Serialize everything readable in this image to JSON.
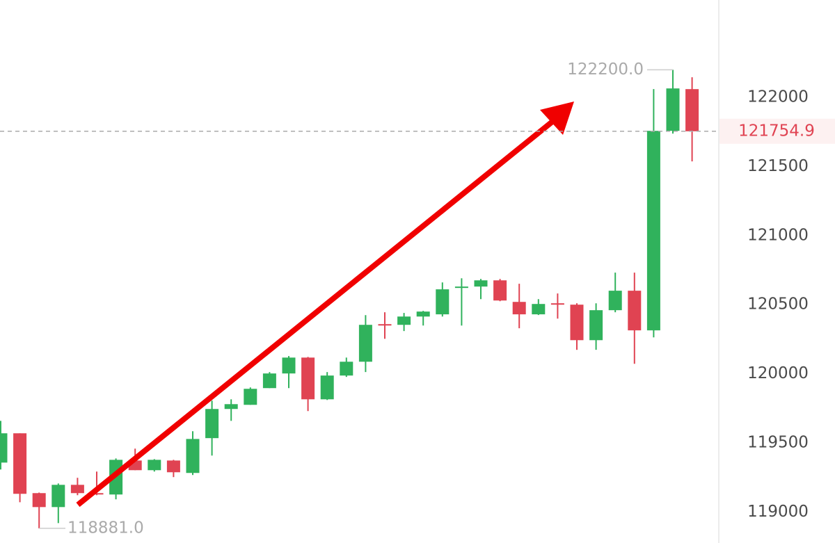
{
  "chart_data": {
    "type": "candlestick",
    "ylim": [
      118775,
      122705
    ],
    "yticks": [
      119000,
      119500,
      120000,
      120500,
      121000,
      121500,
      122000
    ],
    "up_color": "#30b25c",
    "down_color": "#e04352",
    "current_price": 121754.9,
    "high_marker": {
      "value": 122200,
      "label": "122200.0"
    },
    "low_marker": {
      "value": 118881,
      "label": "118881.0"
    },
    "open": [
      119357,
      119569,
      119136,
      119035,
      119196,
      119136,
      119126,
      119372,
      119302,
      119372,
      119282,
      119534,
      119745,
      119775,
      119896,
      120002,
      120117,
      119815,
      119987,
      120087,
      120359,
      120354,
      120414,
      120430,
      120621,
      120631,
      120676,
      120520,
      120430,
      120510,
      120500,
      120243,
      120460,
      120601,
      120314,
      121758,
      122060
    ],
    "high": [
      119659,
      119569,
      119140,
      119206,
      119247,
      119292,
      119387,
      119458,
      119382,
      119377,
      119584,
      119805,
      119815,
      119901,
      120012,
      120128,
      120122,
      120012,
      120117,
      120424,
      120445,
      120440,
      120455,
      120661,
      120691,
      120686,
      120686,
      120651,
      120540,
      120581,
      120510,
      120510,
      120732,
      120732,
      122060,
      122200,
      122146
    ],
    "low": [
      119307,
      119070,
      118881,
      118919,
      119121,
      119121,
      119091,
      119302,
      119292,
      119252,
      119267,
      119408,
      119659,
      119775,
      119896,
      119896,
      119730,
      119810,
      119977,
      120012,
      120253,
      120309,
      120349,
      120414,
      120349,
      120540,
      120525,
      120329,
      120425,
      120399,
      120173,
      120173,
      120445,
      120072,
      120263,
      121738,
      121537
    ],
    "close": [
      119569,
      119131,
      119035,
      119196,
      119136,
      119126,
      119377,
      119302,
      119377,
      119287,
      119528,
      119745,
      119780,
      119891,
      120002,
      120117,
      119815,
      119987,
      120087,
      120354,
      120349,
      120414,
      120450,
      120611,
      120631,
      120676,
      120530,
      120430,
      120505,
      120500,
      120243,
      120460,
      120601,
      120314,
      121758,
      122065,
      121754.9
    ]
  }
}
